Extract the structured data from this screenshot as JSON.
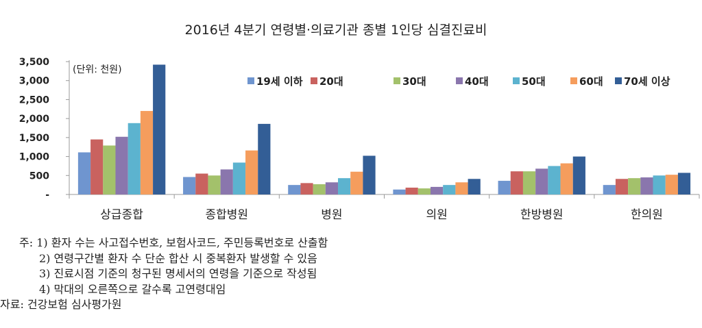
{
  "chart_data": {
    "type": "bar",
    "title": "2016년 4분기 연령별·의료기관 종별 1인당 심결진료비",
    "unit_note": "(단위: 천원)",
    "categories": [
      "상급종합",
      "종합병원",
      "병원",
      "의원",
      "한방병원",
      "한의원"
    ],
    "series": [
      {
        "name": "19세 이하",
        "color": "#6f95cf",
        "values": [
          1110,
          460,
          250,
          130,
          360,
          250
        ]
      },
      {
        "name": "20대",
        "color": "#c9625f",
        "values": [
          1450,
          550,
          300,
          180,
          610,
          410
        ]
      },
      {
        "name": "30대",
        "color": "#a3c16b",
        "values": [
          1290,
          500,
          270,
          160,
          610,
          430
        ]
      },
      {
        "name": "40대",
        "color": "#8a76ad",
        "values": [
          1520,
          660,
          320,
          200,
          680,
          450
        ]
      },
      {
        "name": "50대",
        "color": "#5cb3cf",
        "values": [
          1880,
          840,
          430,
          250,
          750,
          500
        ]
      },
      {
        "name": "60대",
        "color": "#f59d5d",
        "values": [
          2200,
          1160,
          600,
          320,
          820,
          520
        ]
      },
      {
        "name": "70세 이상",
        "color": "#335e96",
        "values": [
          3420,
          1860,
          1020,
          410,
          1000,
          570
        ]
      }
    ],
    "yticks": [
      "-",
      "500",
      "1,000",
      "1,500",
      "2,000",
      "2,500",
      "3,000",
      "3,500"
    ],
    "ylim": [
      0,
      3500
    ],
    "xlabel": "",
    "ylabel": "",
    "grid": false,
    "legend": "top-right"
  },
  "notes": {
    "prefix": "주:",
    "items": [
      "1) 환자 수는 사고접수번호, 보험사코드, 주민등록번호로 산출함",
      "2) 연령구간별 환자 수 단순 합산 시 중복환자 발생할 수 있음",
      "3) 진료시점 기준의 청구된 명세서의 연령을 기준으로 작성됨",
      "4) 막대의 오른쪽으로 갈수록 고연령대임"
    ],
    "source": "자료: 건강보험 심사평가원"
  }
}
